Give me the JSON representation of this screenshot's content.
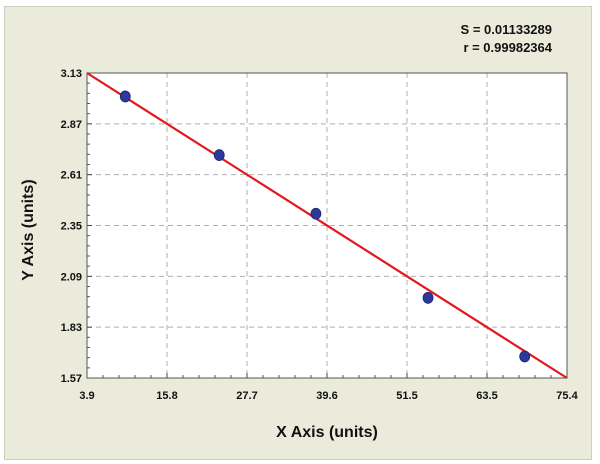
{
  "stats": {
    "s_text": "S = 0.01133289",
    "r_text": "r = 0.99982364"
  },
  "chart_data": {
    "type": "scatter",
    "title": "",
    "xlabel": "X Axis (units)",
    "ylabel": "Y Axis (units)",
    "xlim": [
      3.9,
      75.4
    ],
    "ylim": [
      1.57,
      3.13
    ],
    "xticks": [
      "3.9",
      "15.8",
      "27.7",
      "39.6",
      "51.5",
      "63.5",
      "75.4"
    ],
    "yticks": [
      "1.57",
      "1.83",
      "2.09",
      "2.35",
      "2.61",
      "2.87",
      "3.13"
    ],
    "grid": true,
    "points": [
      {
        "x": 9.6,
        "y": 3.01
      },
      {
        "x": 23.6,
        "y": 2.71
      },
      {
        "x": 38.0,
        "y": 2.41
      },
      {
        "x": 54.7,
        "y": 1.98
      },
      {
        "x": 69.1,
        "y": 1.68
      }
    ],
    "fit_line": {
      "x": [
        3.9,
        75.4
      ],
      "y": [
        3.13,
        1.57
      ]
    },
    "colors": {
      "points": "#2b3a9a",
      "fit_line": "#e3171d",
      "plot_bg": "#ffffff",
      "frame_bg": "#ebebdb",
      "grid": "#b0b0b0"
    }
  }
}
